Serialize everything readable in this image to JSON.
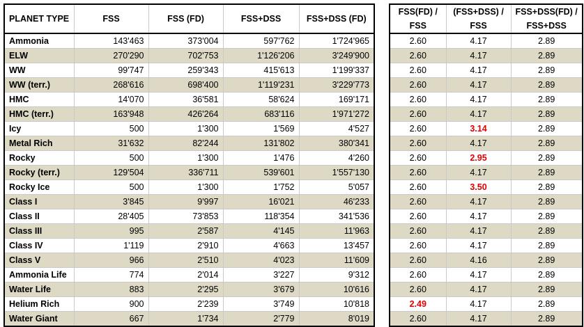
{
  "headers": [
    "PLANET TYPE",
    "FSS",
    "FSS (FD)",
    "FSS+DSS",
    "FSS+DSS (FD)"
  ],
  "ratio_headers": [
    [
      "FSS(FD) /",
      "FSS"
    ],
    [
      "(FSS+DSS) /",
      "FSS"
    ],
    [
      "FSS+DSS(FD) /",
      "FSS+DSS"
    ]
  ],
  "rows": [
    {
      "name": "Ammonia",
      "fss": "143'463",
      "fssfd": "373'004",
      "fssdss": "597'762",
      "fssdssfd": "1'724'965",
      "r1": "2.60",
      "r2": "4.17",
      "r3": "2.89"
    },
    {
      "name": "ELW",
      "fss": "270'290",
      "fssfd": "702'753",
      "fssdss": "1'126'206",
      "fssdssfd": "3'249'900",
      "r1": "2.60",
      "r2": "4.17",
      "r3": "2.89"
    },
    {
      "name": "WW",
      "fss": "99'747",
      "fssfd": "259'343",
      "fssdss": "415'613",
      "fssdssfd": "1'199'337",
      "r1": "2.60",
      "r2": "4.17",
      "r3": "2.89"
    },
    {
      "name": "WW (terr.)",
      "fss": "268'616",
      "fssfd": "698'400",
      "fssdss": "1'119'231",
      "fssdssfd": "3'229'773",
      "r1": "2.60",
      "r2": "4.17",
      "r3": "2.89"
    },
    {
      "name": "HMC",
      "fss": "14'070",
      "fssfd": "36'581",
      "fssdss": "58'624",
      "fssdssfd": "169'171",
      "r1": "2.60",
      "r2": "4.17",
      "r3": "2.89"
    },
    {
      "name": "HMC (terr.)",
      "fss": "163'948",
      "fssfd": "426'264",
      "fssdss": "683'116",
      "fssdssfd": "1'971'272",
      "r1": "2.60",
      "r2": "4.17",
      "r3": "2.89"
    },
    {
      "name": "Icy",
      "fss": "500",
      "fssfd": "1'300",
      "fssdss": "1'569",
      "fssdssfd": "4'527",
      "r1": "2.60",
      "r2": "3.14",
      "r3": "2.89",
      "red": "r2"
    },
    {
      "name": "Metal Rich",
      "fss": "31'632",
      "fssfd": "82'244",
      "fssdss": "131'802",
      "fssdssfd": "380'341",
      "r1": "2.60",
      "r2": "4.17",
      "r3": "2.89"
    },
    {
      "name": "Rocky",
      "fss": "500",
      "fssfd": "1'300",
      "fssdss": "1'476",
      "fssdssfd": "4'260",
      "r1": "2.60",
      "r2": "2.95",
      "r3": "2.89",
      "red": "r2"
    },
    {
      "name": "Rocky (terr.)",
      "fss": "129'504",
      "fssfd": "336'711",
      "fssdss": "539'601",
      "fssdssfd": "1'557'130",
      "r1": "2.60",
      "r2": "4.17",
      "r3": "2.89"
    },
    {
      "name": "Rocky Ice",
      "fss": "500",
      "fssfd": "1'300",
      "fssdss": "1'752",
      "fssdssfd": "5'057",
      "r1": "2.60",
      "r2": "3.50",
      "r3": "2.89",
      "red": "r2"
    },
    {
      "name": "Class I",
      "fss": "3'845",
      "fssfd": "9'997",
      "fssdss": "16'021",
      "fssdssfd": "46'233",
      "r1": "2.60",
      "r2": "4.17",
      "r3": "2.89"
    },
    {
      "name": "Class II",
      "fss": "28'405",
      "fssfd": "73'853",
      "fssdss": "118'354",
      "fssdssfd": "341'536",
      "r1": "2.60",
      "r2": "4.17",
      "r3": "2.89"
    },
    {
      "name": "Class III",
      "fss": "995",
      "fssfd": "2'587",
      "fssdss": "4'145",
      "fssdssfd": "11'963",
      "r1": "2.60",
      "r2": "4.17",
      "r3": "2.89"
    },
    {
      "name": "Class IV",
      "fss": "1'119",
      "fssfd": "2'910",
      "fssdss": "4'663",
      "fssdssfd": "13'457",
      "r1": "2.60",
      "r2": "4.17",
      "r3": "2.89"
    },
    {
      "name": "Class V",
      "fss": "966",
      "fssfd": "2'510",
      "fssdss": "4'023",
      "fssdssfd": "11'609",
      "r1": "2.60",
      "r2": "4.16",
      "r3": "2.89"
    },
    {
      "name": "Ammonia Life",
      "fss": "774",
      "fssfd": "2'014",
      "fssdss": "3'227",
      "fssdssfd": "9'312",
      "r1": "2.60",
      "r2": "4.17",
      "r3": "2.89"
    },
    {
      "name": "Water Life",
      "fss": "883",
      "fssfd": "2'295",
      "fssdss": "3'679",
      "fssdssfd": "10'616",
      "r1": "2.60",
      "r2": "4.17",
      "r3": "2.89"
    },
    {
      "name": "Helium Rich",
      "fss": "900",
      "fssfd": "2'239",
      "fssdss": "3'749",
      "fssdssfd": "10'818",
      "r1": "2.49",
      "r2": "4.17",
      "r3": "2.89",
      "red": "r1"
    },
    {
      "name": "Water Giant",
      "fss": "667",
      "fssfd": "1'734",
      "fssdss": "2'779",
      "fssdssfd": "8'019",
      "r1": "2.60",
      "r2": "4.17",
      "r3": "2.89"
    }
  ],
  "colors": {
    "shade": "#ddd9c4",
    "highlight": "#e00000"
  }
}
